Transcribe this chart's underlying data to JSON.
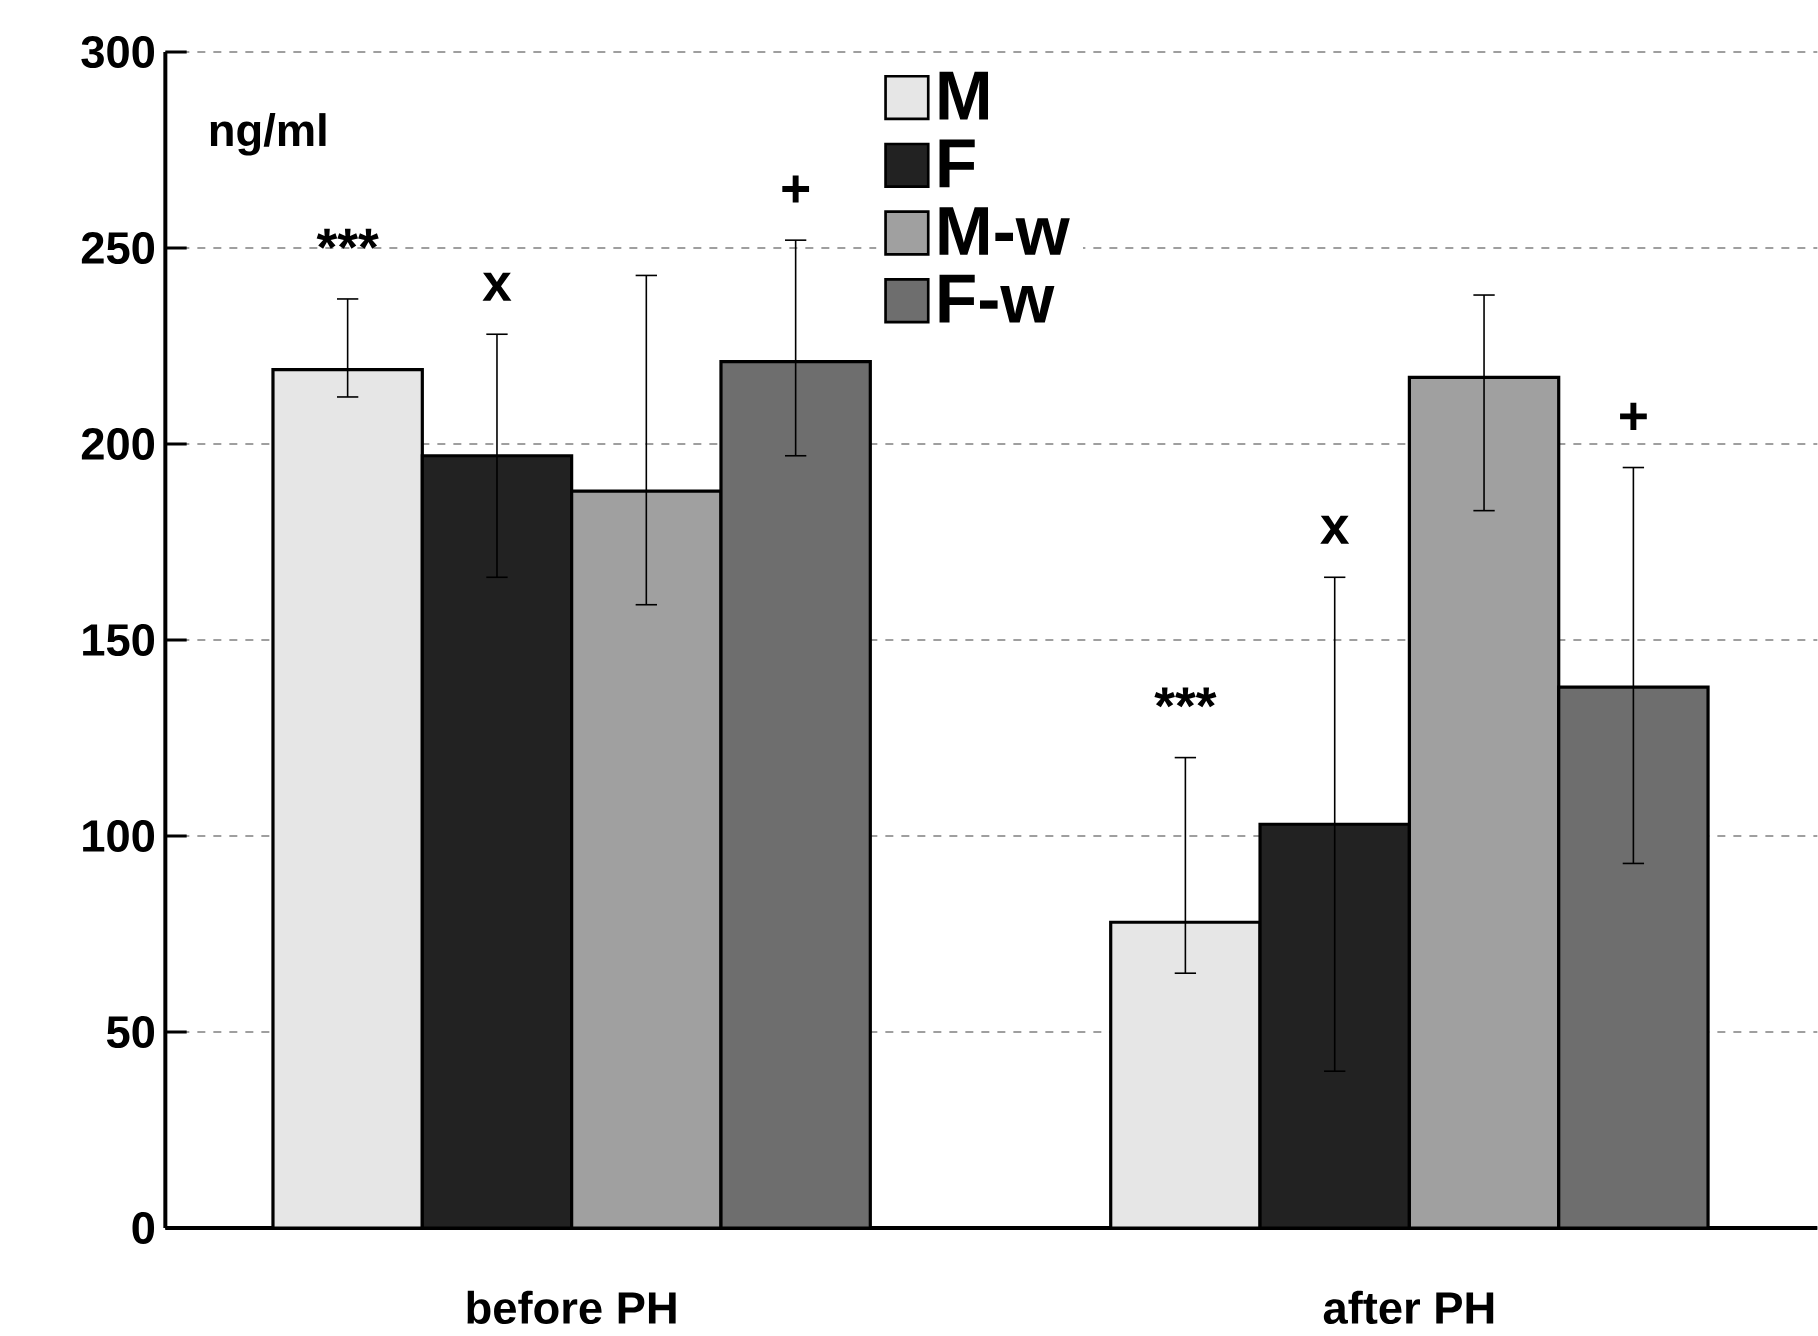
{
  "chart_data": {
    "type": "bar",
    "ylabel": "ng/ml",
    "categories": [
      "before PH",
      "after PH"
    ],
    "series": [
      {
        "name": "M",
        "color": "#e6e6e6",
        "values": [
          219,
          78
        ],
        "errors": [
          [
            212,
            237
          ],
          [
            65,
            120
          ]
        ]
      },
      {
        "name": "F",
        "color": "#222222",
        "values": [
          197,
          103
        ],
        "errors": [
          31,
          63
        ]
      },
      {
        "name": "M-w",
        "color": "#a0a0a0",
        "values": [
          188,
          217
        ],
        "errors": [
          [
            159,
            243
          ],
          [
            183,
            238
          ]
        ]
      },
      {
        "name": "F-w",
        "color": "#6e6e6e",
        "values": [
          221,
          138
        ],
        "errors": [
          [
            197,
            252
          ],
          [
            93,
            194
          ]
        ]
      }
    ],
    "ylim": [
      0,
      300
    ],
    "yticks": [
      0,
      50,
      100,
      150,
      200,
      250,
      300
    ],
    "grid": "y",
    "legend": "top",
    "annotations": [
      "***",
      "x",
      "+",
      "***",
      "x",
      "+"
    ]
  }
}
